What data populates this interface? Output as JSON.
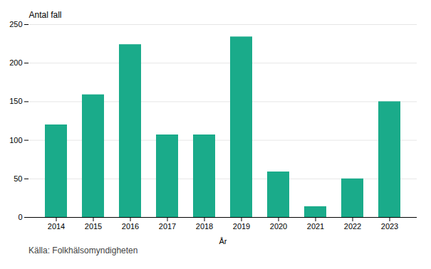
{
  "chart_data": {
    "type": "bar",
    "categories": [
      "2014",
      "2015",
      "2016",
      "2017",
      "2018",
      "2019",
      "2020",
      "2021",
      "2022",
      "2023"
    ],
    "values": [
      120,
      159,
      224,
      107,
      107,
      234,
      59,
      14,
      50,
      150
    ],
    "color": "#1aab8a",
    "xlabel": "År",
    "ylabel": "Antal fall",
    "caption": "Källa: Folkhälsomyndigheten",
    "ylim": [
      0,
      250
    ],
    "yticks": [
      0,
      50,
      100,
      150,
      200,
      250
    ],
    "grid": true
  }
}
